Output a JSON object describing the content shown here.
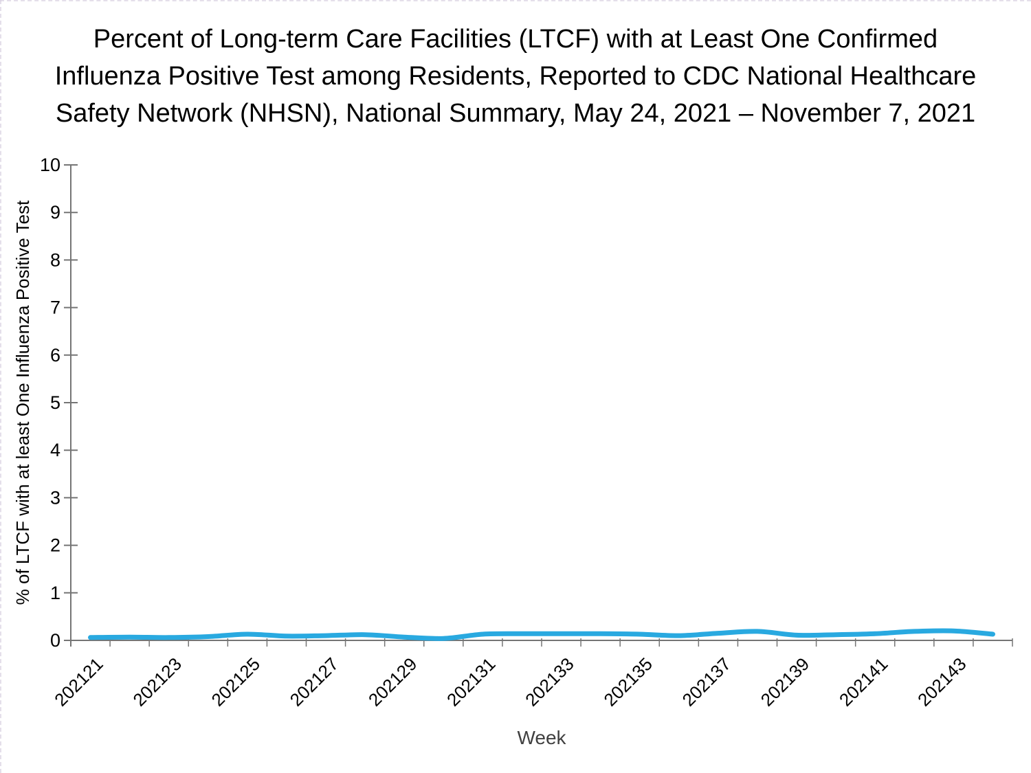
{
  "page": {
    "background": "#ffffff",
    "edge_dash_color": "#d9d2e2"
  },
  "title": {
    "lines": [
      "Percent of Long-term Care Facilities (LTCF) with at Least One Confirmed",
      "Influenza Positive Test among Residents, Reported to CDC National Healthcare",
      "Safety Network (NHSN), National Summary, May 24, 2021 – November 7, 2021"
    ]
  },
  "chart_data": {
    "type": "line",
    "title": "",
    "xlabel": "Week",
    "ylabel": "% of LTCF with at least One Influenza Positive Test",
    "ylim": [
      0,
      10
    ],
    "y_tick_interval": 1,
    "y_tick_labels": [
      "0",
      "1",
      "2",
      "3",
      "4",
      "5",
      "6",
      "7",
      "8",
      "9",
      "10"
    ],
    "grid": false,
    "legend_position": "none",
    "smoothed": true,
    "line_color": "#29A9E0",
    "line_width": 7,
    "axis_color": "#757575",
    "tick_label_color": "#000000",
    "xlabel_color": "#404040",
    "ylabel_color": "#000000",
    "categories": [
      "202121",
      "202122",
      "202123",
      "202124",
      "202125",
      "202126",
      "202127",
      "202128",
      "202129",
      "202130",
      "202131",
      "202132",
      "202133",
      "202134",
      "202135",
      "202136",
      "202137",
      "202138",
      "202139",
      "202140",
      "202141",
      "202142",
      "202143",
      "202144"
    ],
    "x_tick_labels": [
      "202121",
      "202123",
      "202125",
      "202127",
      "202129",
      "202131",
      "202133",
      "202135",
      "202137",
      "202139",
      "202141",
      "202143"
    ],
    "x_label_every": 2,
    "values": [
      0.06,
      0.07,
      0.06,
      0.08,
      0.13,
      0.09,
      0.1,
      0.12,
      0.07,
      0.04,
      0.13,
      0.14,
      0.14,
      0.14,
      0.13,
      0.1,
      0.15,
      0.19,
      0.11,
      0.12,
      0.14,
      0.19,
      0.2,
      0.13
    ]
  }
}
